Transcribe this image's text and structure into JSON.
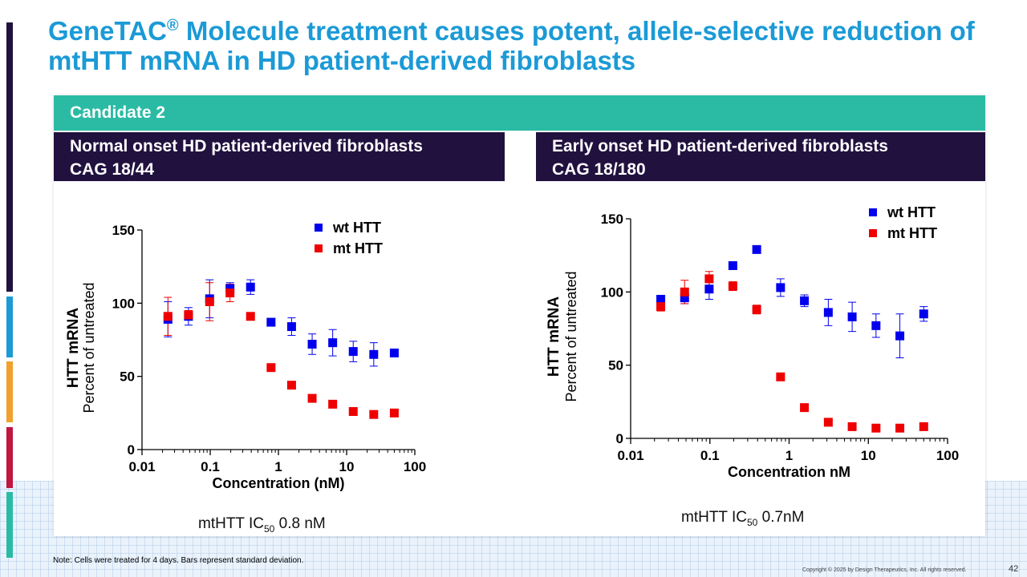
{
  "slide": {
    "title_part1": "GeneTAC",
    "title_reg": "®",
    "title_part2": " Molecule treatment causes potent, allele-selective reduction of mtHTT mRNA in HD patient-derived fibroblasts",
    "band_label": "Candidate 2",
    "left_header_line1": "Normal onset HD patient-derived fibroblasts",
    "left_header_line2": "CAG 18/44",
    "right_header_line1": "Early onset HD patient-derived fibroblasts",
    "right_header_line2": "CAG 18/180",
    "left_ic50_prefix": "mtHTT IC",
    "left_ic50_sub": "50",
    "left_ic50_value": " 0.8 nM",
    "right_ic50_prefix": "mtHTT IC",
    "right_ic50_sub": "50",
    "right_ic50_value": " 0.7nM",
    "note": "Note: Cells were treated for 4 days. Bars represent standard deviation.",
    "copyright": "Copyright © 2025 by Design Therapeutics, Inc. All rights reserved.",
    "page_number": "42"
  },
  "colors": {
    "title": "#1b9ad6",
    "band": "#2bbba5",
    "header": "#21113f",
    "wt": "#0000ee",
    "mt": "#ee0000",
    "left_bar": [
      "#21113f",
      "#1b9ad6",
      "#f0a12b",
      "#c0163f",
      "#2bbba5"
    ]
  },
  "chart_data": [
    {
      "type": "scatter",
      "xscale": "log",
      "xlim": [
        0.01,
        100
      ],
      "ylim": [
        0,
        150
      ],
      "xticks": [
        "0.01",
        "0.1",
        "1",
        "10",
        "100"
      ],
      "yticks": [
        "0",
        "50",
        "100",
        "150"
      ],
      "xlabel": "Concentration (nM)",
      "ylabel_line1": "HTT mRNA",
      "ylabel_line2": "Percent of untreated",
      "legend_position": "top-right",
      "series": [
        {
          "name": "wt HTT",
          "color": "#0000ee",
          "x": [
            0.024,
            0.048,
            0.098,
            0.195,
            0.39,
            0.78,
            1.56,
            3.125,
            6.25,
            12.5,
            25,
            50
          ],
          "y": [
            89,
            91,
            103,
            110,
            111,
            87,
            84,
            72,
            73,
            67,
            65,
            66
          ],
          "err": [
            12,
            6,
            13,
            4,
            5,
            2,
            6,
            7,
            9,
            7,
            8,
            0
          ]
        },
        {
          "name": "mt HTT",
          "color": "#ee0000",
          "x": [
            0.024,
            0.048,
            0.098,
            0.195,
            0.39,
            0.78,
            1.56,
            3.125,
            6.25,
            12.5,
            25,
            50
          ],
          "y": [
            91,
            92,
            101,
            107,
            91,
            56,
            44,
            35,
            31,
            26,
            24,
            25
          ],
          "err": [
            13,
            3,
            13,
            6,
            0,
            0,
            0,
            0,
            0,
            0,
            0,
            0
          ]
        }
      ]
    },
    {
      "type": "scatter",
      "xscale": "log",
      "xlim": [
        0.01,
        100
      ],
      "ylim": [
        0,
        150
      ],
      "xticks": [
        "0.01",
        "0.1",
        "1",
        "10",
        "100"
      ],
      "yticks": [
        "0",
        "50",
        "100",
        "150"
      ],
      "xlabel": "Concentration nM",
      "ylabel_line1": "HTT mRNA",
      "ylabel_line2": "Percent of untreated",
      "legend_position": "top-right",
      "series": [
        {
          "name": "wt HTT",
          "color": "#0000ee",
          "x": [
            0.024,
            0.048,
            0.098,
            0.195,
            0.39,
            0.78,
            1.56,
            3.125,
            6.25,
            12.5,
            25,
            50
          ],
          "y": [
            95,
            96,
            102,
            118,
            129,
            103,
            94,
            86,
            83,
            77,
            70,
            85
          ],
          "err": [
            0,
            4,
            7,
            0,
            0,
            6,
            4,
            9,
            10,
            8,
            15,
            5
          ]
        },
        {
          "name": "mt HTT",
          "color": "#ee0000",
          "x": [
            0.024,
            0.048,
            0.098,
            0.195,
            0.39,
            0.78,
            1.56,
            3.125,
            6.25,
            12.5,
            25,
            50
          ],
          "y": [
            90,
            100,
            109,
            104,
            88,
            42,
            21,
            11,
            8,
            7,
            7,
            8
          ],
          "err": [
            3,
            8,
            5,
            3,
            3,
            0,
            0,
            0,
            0,
            0,
            0,
            0
          ]
        }
      ]
    }
  ]
}
